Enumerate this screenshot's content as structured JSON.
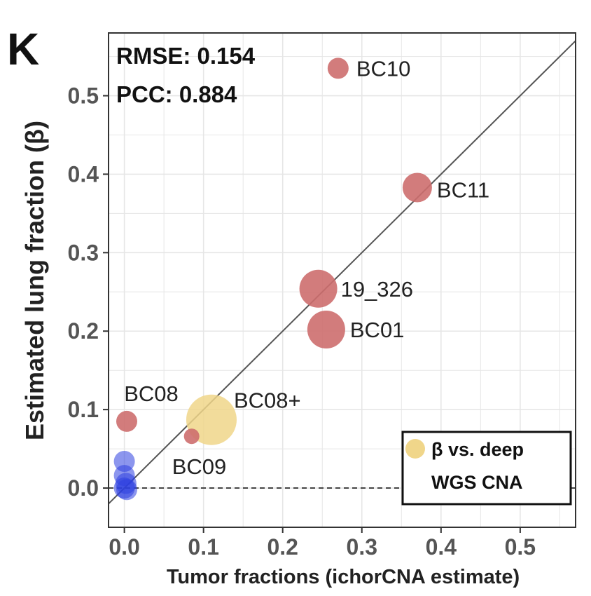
{
  "panel_letter": "K",
  "chart_data": {
    "type": "scatter",
    "xlabel": "Tumor fractions (ichorCNA estimate)",
    "ylabel": "Estimated lung fraction (β)",
    "xlim": [
      -0.02,
      0.57
    ],
    "ylim": [
      -0.05,
      0.58
    ],
    "x_ticks": [
      "0.0",
      "0.1",
      "0.2",
      "0.3",
      "0.4",
      "0.5"
    ],
    "y_ticks": [
      "0.0",
      "0.1",
      "0.2",
      "0.3",
      "0.4",
      "0.5"
    ],
    "grid": true,
    "diagonal_line": true,
    "zero_reference_line": "dashed",
    "annotations": [
      "RMSE: 0.154",
      "PCC: 0.884"
    ],
    "legend": {
      "label_line1": "β vs. deep",
      "label_line2": "WGS CNA",
      "color": "#f0d68a",
      "placement": "bottom-right"
    },
    "colors": {
      "red": "#cd6e6e",
      "blue": "#2d3fe0",
      "yellow": "#f0d68a"
    },
    "points": [
      {
        "label": "BC10",
        "x": 0.27,
        "y": 0.535,
        "size": 2,
        "color": "red"
      },
      {
        "label": "BC11",
        "x": 0.37,
        "y": 0.383,
        "size": 3,
        "color": "red"
      },
      {
        "label": "19_326",
        "x": 0.245,
        "y": 0.254,
        "size": 4,
        "color": "red"
      },
      {
        "label": "BC01",
        "x": 0.255,
        "y": 0.202,
        "size": 4,
        "color": "red"
      },
      {
        "label": "BC08",
        "x": 0.003,
        "y": 0.085,
        "size": 2,
        "color": "red"
      },
      {
        "label": "BC08+",
        "x": 0.11,
        "y": 0.087,
        "size": 5,
        "color": "yellow"
      },
      {
        "label": "BC09",
        "x": 0.085,
        "y": 0.066,
        "size": 1,
        "color": "red"
      },
      {
        "label": "",
        "x": 0.0,
        "y": 0.034,
        "size": 2,
        "color": "blue"
      },
      {
        "label": "",
        "x": 0.0,
        "y": 0.016,
        "size": 2,
        "color": "blue"
      },
      {
        "label": "",
        "x": 0.002,
        "y": 0.006,
        "size": 2,
        "color": "blue"
      },
      {
        "label": "",
        "x": 0.0,
        "y": 0.0,
        "size": 2,
        "color": "blue"
      },
      {
        "label": "",
        "x": 0.003,
        "y": -0.002,
        "size": 2,
        "color": "blue"
      }
    ]
  }
}
